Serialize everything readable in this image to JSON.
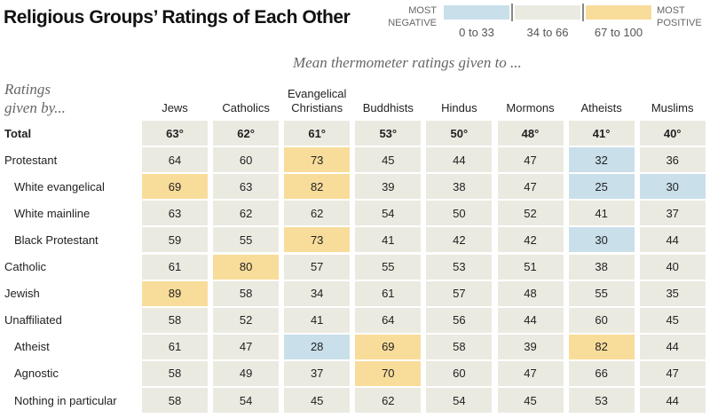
{
  "title": "Religious Groups’ Ratings of Each Other",
  "legend": {
    "negative_label": [
      "MOST",
      "NEGATIVE"
    ],
    "positive_label": [
      "MOST",
      "POSITIVE"
    ],
    "ranges": [
      {
        "label": "0 to 33",
        "color": "#c9dfea"
      },
      {
        "label": "34 to 66",
        "color": "#ebeae1"
      },
      {
        "label": "67 to 100",
        "color": "#f8dc9a"
      }
    ]
  },
  "chart_data": {
    "type": "table",
    "title": "Religious Groups’ Ratings of Each Other",
    "subtitle": "Mean thermometer ratings given to ...",
    "row_header_label": [
      "Ratings",
      "given by..."
    ],
    "columns": [
      {
        "lines": [
          "Jews"
        ]
      },
      {
        "lines": [
          "Catholics"
        ]
      },
      {
        "lines": [
          "Evangelical",
          "Christians"
        ]
      },
      {
        "lines": [
          "Buddhists"
        ]
      },
      {
        "lines": [
          "Hindus"
        ]
      },
      {
        "lines": [
          "Mormons"
        ]
      },
      {
        "lines": [
          "Atheists"
        ]
      },
      {
        "lines": [
          "Muslims"
        ]
      }
    ],
    "rows": [
      {
        "label": "Total",
        "indent": false,
        "total": true,
        "values": [
          63,
          62,
          61,
          53,
          50,
          48,
          41,
          40
        ]
      },
      {
        "label": "Protestant",
        "indent": false,
        "total": false,
        "values": [
          64,
          60,
          73,
          45,
          44,
          47,
          32,
          36
        ]
      },
      {
        "label": "White evangelical",
        "indent": true,
        "total": false,
        "values": [
          69,
          63,
          82,
          39,
          38,
          47,
          25,
          30
        ]
      },
      {
        "label": "White mainline",
        "indent": true,
        "total": false,
        "values": [
          63,
          62,
          62,
          54,
          50,
          52,
          41,
          37
        ]
      },
      {
        "label": "Black Protestant",
        "indent": true,
        "total": false,
        "values": [
          59,
          55,
          73,
          41,
          42,
          42,
          30,
          44
        ]
      },
      {
        "label": "Catholic",
        "indent": false,
        "total": false,
        "values": [
          61,
          80,
          57,
          55,
          53,
          51,
          38,
          40
        ]
      },
      {
        "label": "Jewish",
        "indent": false,
        "total": false,
        "values": [
          89,
          58,
          34,
          61,
          57,
          48,
          55,
          35
        ]
      },
      {
        "label": "Unaffiliated",
        "indent": false,
        "total": false,
        "values": [
          58,
          52,
          41,
          64,
          56,
          44,
          60,
          45
        ]
      },
      {
        "label": "Atheist",
        "indent": true,
        "total": false,
        "values": [
          61,
          47,
          28,
          69,
          58,
          39,
          82,
          44
        ]
      },
      {
        "label": "Agnostic",
        "indent": true,
        "total": false,
        "values": [
          58,
          49,
          37,
          70,
          60,
          47,
          66,
          47
        ]
      },
      {
        "label": "Nothing in particular",
        "indent": true,
        "total": false,
        "values": [
          58,
          54,
          45,
          62,
          54,
          45,
          53,
          44
        ]
      }
    ],
    "total_suffix": "°",
    "scale": {
      "negative_max": 33,
      "positive_min": 67
    }
  }
}
